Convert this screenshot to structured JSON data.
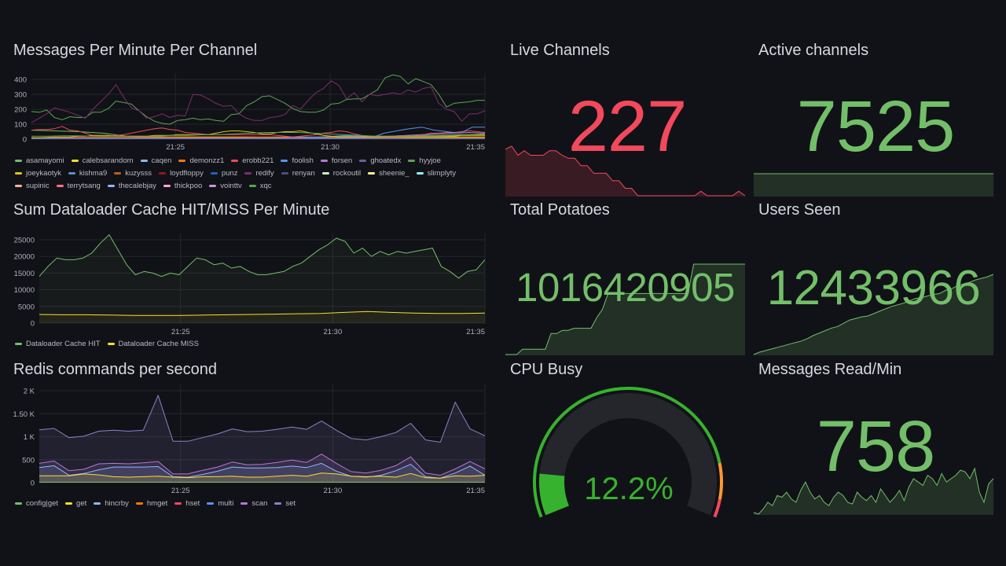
{
  "panels": {
    "messages": {
      "title": "Messages Per Minute Per Channel"
    },
    "cache": {
      "title": "Sum Dataloader Cache HIT/MISS Per Minute"
    },
    "redis": {
      "title": "Redis commands per second"
    },
    "live": {
      "title": "Live Channels",
      "value": "227",
      "color": "#f2495c"
    },
    "active": {
      "title": "Active channels",
      "value": "7525",
      "color": "#73bf69"
    },
    "potatoes": {
      "title": "Total Potatoes",
      "value": "1016420905",
      "color": "#73bf69"
    },
    "users": {
      "title": "Users Seen",
      "value": "12433966",
      "color": "#73bf69"
    },
    "cpu": {
      "title": "CPU Busy",
      "value": "12.2%",
      "percent": 12.2,
      "thresholds": [
        {
          "from": 0,
          "to": 85,
          "color": "#37b22e"
        },
        {
          "from": 85,
          "to": 95,
          "color": "#ff9830"
        },
        {
          "from": 95,
          "to": 100,
          "color": "#f2495c"
        }
      ]
    },
    "read": {
      "title": "Messages Read/Min",
      "value": "758",
      "color": "#73bf69"
    }
  },
  "sparklines": {
    "live": [
      258,
      260,
      254,
      257,
      254,
      254,
      254,
      257,
      257,
      254,
      252,
      252,
      247,
      247,
      242,
      242,
      242,
      237,
      237,
      232,
      232,
      227,
      227,
      227,
      227,
      227,
      227,
      227,
      227,
      227,
      227,
      230,
      227,
      227,
      227,
      227,
      227,
      230,
      227
    ],
    "active": [
      7525,
      7525,
      7525,
      7525,
      7525
    ],
    "potatoes": [
      0,
      0,
      0,
      5,
      5,
      5,
      5,
      5,
      20,
      20,
      23,
      23,
      25,
      25,
      25,
      25,
      35,
      43,
      58,
      58,
      58,
      58,
      58,
      58,
      58,
      58,
      58,
      58,
      58,
      58,
      58,
      58,
      58,
      86,
      86,
      86,
      86,
      86,
      86,
      86,
      86,
      86,
      86
    ],
    "users": [
      0,
      3,
      5,
      7,
      9,
      11,
      13,
      15,
      17,
      20,
      24,
      27,
      30,
      33,
      35,
      39,
      43,
      45,
      47,
      48,
      51,
      54,
      57,
      60,
      62,
      64,
      67,
      70,
      71,
      73,
      75,
      76,
      80,
      82,
      86,
      88,
      90,
      93,
      95,
      97,
      100
    ],
    "read": [
      700,
      690,
      720,
      760,
      740,
      800,
      790,
      820,
      780,
      760,
      830,
      880,
      820,
      780,
      800,
      760,
      740,
      790,
      820,
      800,
      760,
      750,
      820,
      790,
      770,
      800,
      760,
      840,
      800,
      760,
      790,
      830,
      770,
      850,
      900,
      880,
      860,
      920,
      900,
      860,
      930,
      880,
      900,
      920,
      950,
      940,
      900,
      960,
      820,
      760,
      870,
      900
    ]
  },
  "chart_data": [
    {
      "type": "line",
      "title": "Messages Per Minute Per Channel",
      "xlim": [
        20.35,
        35
      ],
      "xticks": [
        25,
        30,
        35
      ],
      "xtick_labels": [
        "21:25",
        "21:30",
        "21:35"
      ],
      "ylim": [
        0,
        400
      ],
      "yticks": [
        0,
        100,
        200,
        300,
        400
      ],
      "ytick_labels": [
        "0",
        "100",
        "200",
        "300",
        "400"
      ],
      "legend": "bottom",
      "series": [
        {
          "name": "asamayomi",
          "color": "#73bf69",
          "values": [
            60,
            55,
            50,
            40,
            20,
            15,
            15,
            15,
            15,
            15,
            15,
            15,
            15,
            20,
            20,
            20,
            25,
            25,
            30,
            30
          ]
        },
        {
          "name": "calebsarandom",
          "color": "#fade2a",
          "values": [
            5,
            5,
            8,
            8,
            10,
            10,
            10,
            12,
            12,
            12,
            12,
            12,
            12,
            12,
            15,
            15,
            15,
            15,
            15,
            15
          ]
        },
        {
          "name": "caqen",
          "color": "#8ab8ff",
          "values": [
            3,
            3,
            3,
            3,
            3,
            3,
            3,
            3,
            3,
            3,
            3,
            3,
            3,
            3,
            3,
            3,
            3,
            3,
            3,
            3
          ]
        },
        {
          "name": "demonzz1",
          "color": "#ff780a",
          "values": [
            10,
            10,
            12,
            12,
            12,
            15,
            15,
            15,
            15,
            15,
            12,
            12,
            12,
            10,
            10,
            10,
            10,
            10,
            10,
            10
          ]
        },
        {
          "name": "erobb221",
          "color": "#f2495c",
          "values": [
            60,
            65,
            65,
            70,
            85,
            60,
            55,
            40,
            25,
            20,
            20,
            25,
            30,
            40,
            50,
            60,
            70,
            75,
            65,
            60,
            45,
            40,
            35,
            30,
            30,
            30,
            30,
            30,
            30,
            30,
            30,
            30,
            25,
            20,
            15,
            20,
            25,
            30,
            40,
            45,
            55,
            50,
            35,
            25,
            20,
            15,
            10,
            10,
            10,
            15,
            20,
            30,
            40,
            40,
            45,
            45,
            50,
            55,
            50,
            45
          ]
        },
        {
          "name": "foolish",
          "color": "#5794f2",
          "values": [
            5,
            5,
            5,
            5,
            5,
            5,
            5,
            5,
            5,
            5,
            5,
            5,
            5,
            5,
            5,
            5,
            5,
            5,
            5,
            5,
            8,
            10,
            12,
            15,
            20,
            25,
            20,
            10,
            40,
            55,
            70,
            80,
            60,
            50,
            40,
            80,
            80
          ]
        },
        {
          "name": "forsen",
          "color": "#b877d9",
          "values": [
            8,
            8,
            8,
            8,
            8,
            8,
            8,
            8,
            8,
            8,
            8,
            8,
            8,
            8,
            8,
            8,
            8,
            8,
            8,
            8,
            8,
            10,
            15,
            20,
            25,
            30,
            35,
            40,
            45,
            40
          ]
        },
        {
          "name": "ghoatedx",
          "color": "#705da0",
          "values": [
            5,
            5,
            5,
            5,
            5,
            5,
            5,
            5,
            5,
            5,
            5,
            5,
            5,
            5,
            5,
            5,
            5,
            5,
            5,
            5
          ]
        },
        {
          "name": "hyyjoe",
          "color": "#5aa64f",
          "values": [
            185,
            180,
            195,
            145,
            130,
            150,
            145,
            145,
            180,
            180,
            205,
            255,
            245,
            235,
            190,
            150,
            120,
            105,
            100,
            125,
            130,
            140,
            130,
            135,
            125,
            120,
            165,
            170,
            225,
            250,
            285,
            290,
            265,
            240,
            205,
            185,
            180,
            180,
            195,
            235,
            240,
            265,
            270,
            270,
            300,
            330,
            410,
            430,
            420,
            370,
            405,
            385,
            365,
            300,
            215,
            240,
            245,
            250,
            260,
            260
          ]
        },
        {
          "name": "joeykaotyk",
          "color": "#e0c020",
          "values": [
            10,
            10,
            12,
            15,
            15,
            15,
            20,
            20,
            25,
            25,
            25,
            20,
            20,
            20,
            20,
            20,
            25,
            25,
            25,
            30,
            30,
            30,
            30,
            30,
            40,
            50,
            55,
            55,
            50,
            45,
            35,
            35,
            45,
            50,
            50,
            55,
            45,
            35,
            25,
            20,
            15,
            15,
            15,
            15,
            15,
            15,
            15,
            15,
            15,
            15,
            15,
            15,
            15,
            20,
            20,
            20,
            25,
            25,
            25,
            25
          ]
        },
        {
          "name": "kishma9",
          "color": "#5a8fc4",
          "values": []
        },
        {
          "name": "kuzysss",
          "color": "#c15c17",
          "values": []
        },
        {
          "name": "loydfloppy",
          "color": "#8a1a1a",
          "values": []
        },
        {
          "name": "punz",
          "color": "#1f60c4",
          "values": []
        },
        {
          "name": "redify",
          "color": "#7c2e6a",
          "values": [
            110,
            140,
            170,
            210,
            195,
            180,
            160,
            140,
            200,
            250,
            300,
            365,
            280,
            210,
            190,
            140,
            150,
            170,
            145,
            160,
            155,
            300,
            295,
            270,
            240,
            220,
            225,
            170,
            140,
            125,
            125,
            145,
            150,
            165,
            225,
            200,
            260,
            310,
            340,
            390,
            360,
            270,
            310,
            250,
            300,
            290,
            300,
            310,
            300,
            330,
            315,
            340,
            350,
            240,
            200,
            185,
            120,
            170,
            170,
            190
          ]
        },
        {
          "name": "renyan",
          "color": "#4f4f7a",
          "values": []
        },
        {
          "name": "rockoutil",
          "color": "#c8f2c2",
          "values": []
        },
        {
          "name": "sheenie_",
          "color": "#fff899",
          "values": []
        },
        {
          "name": "slimplyty",
          "color": "#8ff0ff",
          "values": []
        },
        {
          "name": "supinic",
          "color": "#ffb3a0",
          "values": []
        },
        {
          "name": "terrytsang",
          "color": "#ff7383",
          "values": []
        },
        {
          "name": "thecalebjay",
          "color": "#8ab8ff",
          "values": []
        },
        {
          "name": "thickpoo",
          "color": "#ffa6e0",
          "values": []
        },
        {
          "name": "vointtv",
          "color": "#ca95e5",
          "values": []
        },
        {
          "name": "xqc",
          "color": "#56a64b",
          "values": [
            20,
            20,
            22,
            22,
            20,
            20,
            20,
            20,
            20,
            25,
            25,
            30,
            30,
            35,
            40,
            45,
            45,
            45,
            40,
            35,
            30,
            25,
            20,
            20,
            20,
            20,
            20,
            25,
            30,
            35
          ]
        }
      ]
    },
    {
      "type": "line",
      "title": "Sum Dataloader Cache HIT/MISS Per Minute",
      "xlim": [
        20.36,
        35
      ],
      "xticks": [
        25,
        30,
        35
      ],
      "xtick_labels": [
        "21:25",
        "21:30",
        "21:35"
      ],
      "ylim": [
        0,
        25000
      ],
      "yticks": [
        0,
        5000,
        10000,
        15000,
        20000,
        25000
      ],
      "ytick_labels": [
        "0",
        "5000",
        "10000",
        "15000",
        "20000",
        "25000"
      ],
      "legend": "bottom",
      "fill": true,
      "series": [
        {
          "name": "Dataloader Cache HIT",
          "color": "#73bf69",
          "values": [
            14000,
            17000,
            19500,
            19000,
            19000,
            19500,
            21000,
            24000,
            26500,
            22000,
            17500,
            14500,
            15500,
            15000,
            14000,
            15000,
            14500,
            17000,
            19500,
            19000,
            17500,
            18000,
            16500,
            17000,
            15500,
            14500,
            14500,
            15000,
            15500,
            17000,
            18000,
            20000,
            22000,
            23500,
            25500,
            24500,
            21000,
            22500,
            20000,
            21500,
            20500,
            21500,
            21000,
            21500,
            22000,
            22500,
            17000,
            15500,
            13500,
            15500,
            16000,
            19000
          ]
        },
        {
          "name": "Dataloader Cache MISS",
          "color": "#fade2a",
          "values": [
            2600,
            2500,
            2500,
            2400,
            2300,
            2300,
            2300,
            2400,
            2500,
            2600,
            2700,
            2800,
            2900,
            3200,
            3500,
            3200,
            3000,
            2900,
            2900,
            3000
          ]
        }
      ]
    },
    {
      "type": "area",
      "stacked": true,
      "title": "Redis commands per second",
      "xlim": [
        20.36,
        35
      ],
      "xticks": [
        25,
        30,
        35
      ],
      "xtick_labels": [
        "21:25",
        "21:30",
        "21:35"
      ],
      "ylim": [
        0,
        2000
      ],
      "yticks": [
        0,
        500,
        1000,
        1500,
        2000
      ],
      "ytick_labels": [
        "0",
        "500",
        "1 K",
        "1.50 K",
        "2 K"
      ],
      "legend": "bottom",
      "series": [
        {
          "name": "config|get",
          "color": "#73bf69",
          "values": [
            10,
            10,
            10,
            10,
            10,
            10,
            10,
            10,
            10,
            10
          ]
        },
        {
          "name": "get",
          "color": "#fade2a",
          "values": [
            150,
            150,
            150,
            190,
            170,
            130,
            120,
            130,
            140,
            120,
            110,
            130,
            130,
            140,
            120,
            120,
            140,
            160,
            140,
            210,
            190,
            140,
            130,
            140,
            120,
            200,
            110,
            100,
            150,
            140,
            160
          ]
        },
        {
          "name": "hincrby",
          "color": "#8ab8ff",
          "values": [
            330,
            370,
            160,
            200,
            280,
            340,
            340,
            340,
            350,
            130,
            120,
            180,
            250,
            340,
            320,
            320,
            330,
            360,
            330,
            420,
            250,
            140,
            120,
            160,
            260,
            400,
            130,
            100,
            210,
            360,
            160
          ]
        },
        {
          "name": "hmget",
          "color": "#ff780a",
          "values": []
        },
        {
          "name": "hset",
          "color": "#f2495c",
          "values": []
        },
        {
          "name": "multi",
          "color": "#5794f2",
          "values": []
        },
        {
          "name": "scan",
          "color": "#b877d9",
          "values": [
            420,
            470,
            260,
            290,
            410,
            420,
            410,
            430,
            460,
            190,
            190,
            270,
            340,
            450,
            390,
            400,
            440,
            490,
            440,
            620,
            420,
            240,
            210,
            270,
            370,
            560,
            210,
            160,
            300,
            460,
            300
          ]
        },
        {
          "name": "set",
          "color": "#8f7fc8",
          "values": [
            1150,
            1180,
            980,
            1010,
            1120,
            1140,
            1120,
            1140,
            1900,
            900,
            900,
            980,
            1060,
            1170,
            1110,
            1120,
            1160,
            1210,
            1160,
            1340,
            1140,
            960,
            930,
            1000,
            1090,
            1290,
            930,
            880,
            1750,
            1170,
            1020
          ]
        }
      ]
    }
  ]
}
